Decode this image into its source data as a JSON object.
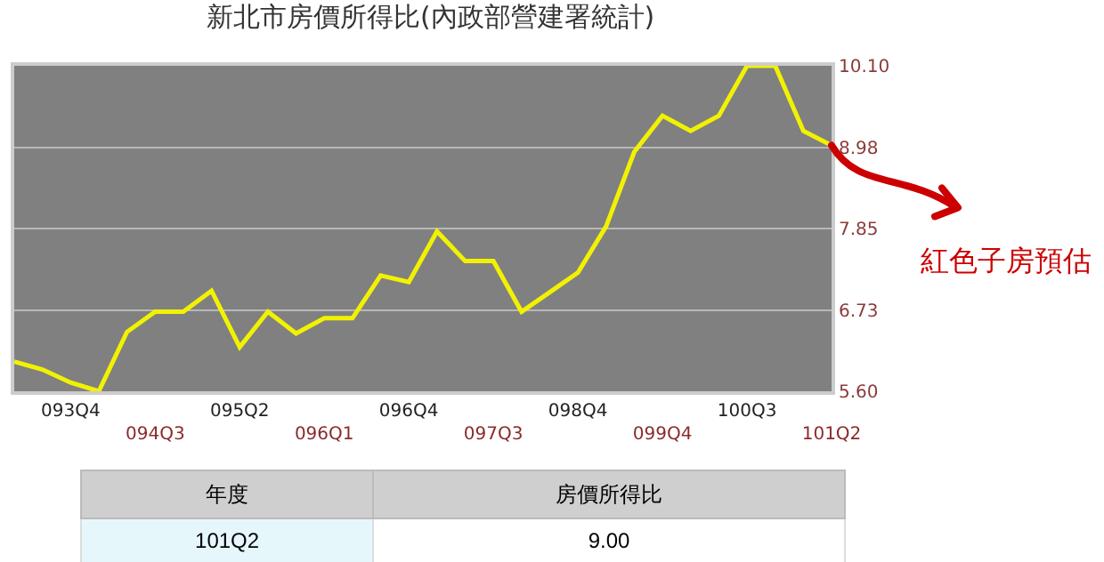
{
  "chart_data": {
    "type": "line",
    "title": "新北市房價所得比(內政部營建署統計)",
    "categories": [
      null,
      null,
      "093Q4",
      null,
      null,
      "094Q3",
      null,
      null,
      "095Q2",
      null,
      null,
      "096Q1",
      null,
      null,
      "096Q4",
      null,
      null,
      "097Q3",
      null,
      null,
      "098Q4",
      null,
      null,
      "099Q4",
      null,
      null,
      "100Q3",
      null,
      null,
      "101Q2"
    ],
    "series": [
      {
        "color": "#f2f200",
        "values": [
          6.01,
          5.9,
          5.72,
          5.6,
          6.42,
          6.7,
          6.7,
          6.99,
          6.21,
          6.7,
          6.4,
          6.61,
          6.61,
          7.2,
          7.11,
          7.81,
          7.4,
          7.4,
          6.7,
          6.97,
          7.24,
          7.88,
          8.91,
          9.41,
          9.2,
          9.41,
          10.1,
          10.1,
          9.2,
          9.0
        ]
      }
    ],
    "ylim": [
      5.6,
      10.1
    ],
    "yticks": [
      {
        "value": 5.6,
        "label": "5.60"
      },
      {
        "value": 6.725,
        "label": "6.73"
      },
      {
        "value": 7.85,
        "label": "7.85"
      },
      {
        "value": 8.975,
        "label": "8.98"
      },
      {
        "value": 10.1,
        "label": "10.10"
      }
    ],
    "grid": "y",
    "marker": "none",
    "line_style": "solid",
    "legend": false,
    "annotations": [
      "紅色子房預估",
      "年度",
      "房價所得比",
      "101Q2",
      "9.00"
    ]
  }
}
